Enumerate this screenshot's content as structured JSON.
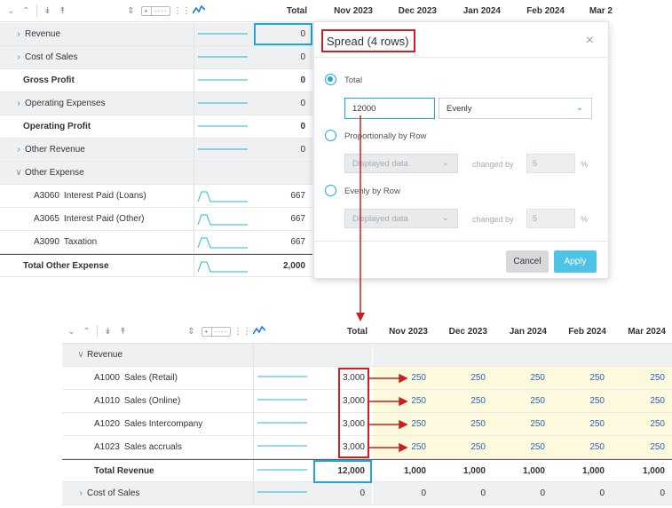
{
  "top_grid": {
    "header": {
      "total": "Total",
      "months": [
        "Nov 2023",
        "Dec 2023",
        "Jan 2024",
        "Feb 2024",
        "Mar 2"
      ]
    },
    "rows": [
      {
        "label": "Revenue",
        "code": "",
        "total": "0",
        "expand": "collapsed",
        "bold": false,
        "shaded": true
      },
      {
        "label": "Cost of Sales",
        "code": "",
        "total": "0",
        "expand": "collapsed",
        "bold": false,
        "shaded": true
      },
      {
        "label": "Gross Profit",
        "code": "",
        "total": "0",
        "expand": "none",
        "bold": true,
        "shaded": false
      },
      {
        "label": "Operating Expenses",
        "code": "",
        "total": "0",
        "expand": "collapsed",
        "bold": false,
        "shaded": true
      },
      {
        "label": "Operating Profit",
        "code": "",
        "total": "0",
        "expand": "none",
        "bold": true,
        "shaded": false
      },
      {
        "label": "Other Revenue",
        "code": "",
        "total": "0",
        "expand": "collapsed",
        "bold": false,
        "shaded": true
      },
      {
        "label": "Other Expense",
        "code": "",
        "total": "",
        "expand": "expanded",
        "bold": false,
        "shaded": true
      },
      {
        "label": "Interest Paid (Loans)",
        "code": "A3060",
        "total": "667",
        "expand": "none",
        "bold": false,
        "shaded": false
      },
      {
        "label": "Interest Paid (Other)",
        "code": "A3065",
        "total": "667",
        "expand": "none",
        "bold": false,
        "shaded": false
      },
      {
        "label": "Taxation",
        "code": "A3090",
        "total": "667",
        "expand": "none",
        "bold": false,
        "shaded": false
      },
      {
        "label": "Total Other Expense",
        "code": "",
        "total": "2,000",
        "expand": "none",
        "bold": true,
        "shaded": false
      }
    ]
  },
  "dialog": {
    "title": "Spread (4 rows)",
    "close_symbol": "×",
    "option_total": "Total",
    "amount_value": "12000",
    "method_value": "Evenly",
    "option_proportional": "Proportionally by Row",
    "option_evenly_by_row": "Evenly by Row",
    "displayed_data": "Displayed data",
    "changed_by": "changed by",
    "change_value": "5",
    "percent": "%",
    "cancel_label": "Cancel",
    "apply_label": "Apply"
  },
  "bottom_grid": {
    "header": {
      "total": "Total",
      "months": [
        "Nov 2023",
        "Dec 2023",
        "Jan 2024",
        "Feb 2024",
        "Mar 2024"
      ]
    },
    "rows": [
      {
        "label": "Revenue",
        "code": "",
        "total": "",
        "months": [
          "",
          "",
          "",
          "",
          ""
        ],
        "expand": "expanded",
        "bold": false,
        "shaded": true
      },
      {
        "label": "Sales (Retail)",
        "code": "A1000",
        "total": "3,000",
        "months": [
          "250",
          "250",
          "250",
          "250",
          "250"
        ],
        "expand": "none",
        "bold": false,
        "shaded": false
      },
      {
        "label": "Sales (Online)",
        "code": "A1010",
        "total": "3,000",
        "months": [
          "250",
          "250",
          "250",
          "250",
          "250"
        ],
        "expand": "none",
        "bold": false,
        "shaded": false
      },
      {
        "label": "Sales Intercompany",
        "code": "A1020",
        "total": "3,000",
        "months": [
          "250",
          "250",
          "250",
          "250",
          "250"
        ],
        "expand": "none",
        "bold": false,
        "shaded": false
      },
      {
        "label": "Sales accruals",
        "code": "A1023",
        "total": "3,000",
        "months": [
          "250",
          "250",
          "250",
          "250",
          "250"
        ],
        "expand": "none",
        "bold": false,
        "shaded": false
      },
      {
        "label": "Total Revenue",
        "code": "",
        "total": "12,000",
        "months": [
          "1,000",
          "1,000",
          "1,000",
          "1,000",
          "1,000"
        ],
        "expand": "none",
        "bold": true,
        "shaded": false
      },
      {
        "label": "Cost of Sales",
        "code": "",
        "total": "0",
        "months": [
          "0",
          "0",
          "0",
          "0",
          "0"
        ],
        "expand": "collapsed",
        "bold": false,
        "shaded": true
      }
    ]
  },
  "colors": {
    "accent": "#1ea7d8",
    "highlight_red": "#cc1f1f",
    "link_value": "#2a63c4",
    "spread_cell_bg": "#fdf9dc",
    "row_shade": "#eef0f2",
    "sparkline": "#27b4dd"
  },
  "icons": {
    "collapse_all": "chevron-down-icon",
    "expand_all": "chevron-up-icon",
    "collapse_levels": "double-chevron-down-icon",
    "expand_levels": "double-chevron-up-icon",
    "split": "split-rows-icon",
    "drag": "drag-handle-icon",
    "sparkline": "sparkline-chart-icon",
    "arrow": "red-arrow-icon"
  }
}
